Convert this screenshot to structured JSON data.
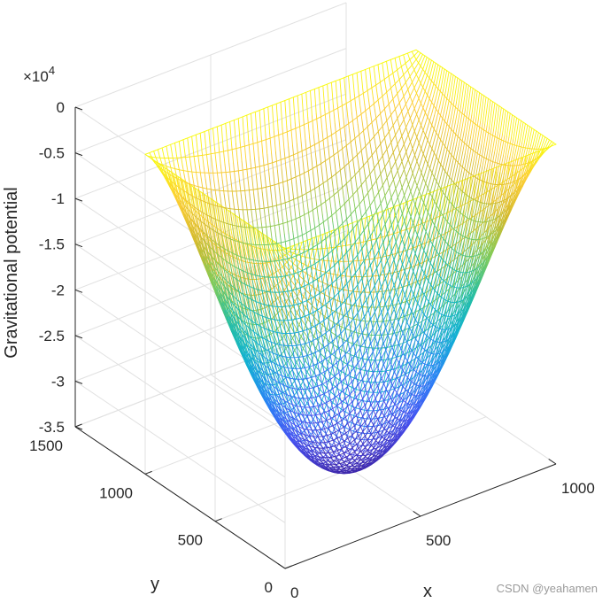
{
  "chart_data": {
    "type": "surface",
    "style": "mesh",
    "colormap": "parula",
    "zlabel": "Gravitational potential",
    "xlabel": "x",
    "ylabel": "y",
    "z_multiplier_label": "×10",
    "z_multiplier_exponent": "4",
    "xlim": [
      0,
      1000
    ],
    "ylim": [
      0,
      1500
    ],
    "zlim": [
      -35000,
      0
    ],
    "x_ticks": [
      {
        "value": 0,
        "label": "0"
      },
      {
        "value": 500,
        "label": "500"
      },
      {
        "value": 1000,
        "label": "1000"
      }
    ],
    "y_ticks": [
      {
        "value": 0,
        "label": "0"
      },
      {
        "value": 500,
        "label": "500"
      },
      {
        "value": 1000,
        "label": "1000"
      },
      {
        "value": 1500,
        "label": "1500"
      }
    ],
    "z_ticks": [
      {
        "value": 0,
        "label": "0"
      },
      {
        "value": -5000,
        "label": "-0.5"
      },
      {
        "value": -10000,
        "label": "-1"
      },
      {
        "value": -15000,
        "label": "-1.5"
      },
      {
        "value": -20000,
        "label": "-2"
      },
      {
        "value": -25000,
        "label": "-2.5"
      },
      {
        "value": -30000,
        "label": "-3"
      },
      {
        "value": -35000,
        "label": "-3.5"
      }
    ],
    "grid": true,
    "surface": {
      "x_range": [
        0,
        1000
      ],
      "y_range": [
        0,
        1000
      ],
      "center": [
        500,
        500
      ],
      "z_min": -35000,
      "z_max": 0,
      "shape": "bowl",
      "mesh_lines_per_side": 64
    }
  },
  "watermark": "CSDN @yeahamen"
}
